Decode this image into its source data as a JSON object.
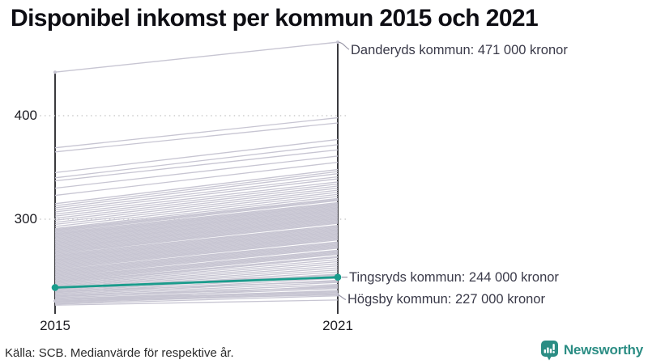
{
  "title": "Disponibel inkomst per kommun 2015 och 2021",
  "source": "Källa: SCB. Medianvärde för respektive år.",
  "brand": {
    "name": "Newsworthy",
    "color": "#2b8d84",
    "icon": "bar-chart-speech-bubble-icon"
  },
  "chart_data": {
    "type": "line",
    "subtype": "slope-chart",
    "title": "Disponibel inkomst per kommun 2015 och 2021",
    "x": [
      2015,
      2021
    ],
    "x_labels": [
      "2015",
      "2021"
    ],
    "y_ticks": [
      400,
      300
    ],
    "y_tick_labels": [
      "400",
      "300"
    ],
    "ylim": [
      208,
      480
    ],
    "unit": "tusen kronor",
    "grid": "dotted-horizontal-at-ticks",
    "legend": "none",
    "colors": {
      "background_line": "#c7c5d2",
      "highlight": "#1a9c8c",
      "axis": "#17171c",
      "grid_dot": "#cfcfcf",
      "connector": "#9a98a8",
      "annotation_text": "#3a3a49"
    },
    "highlight_series": {
      "name": "Tingsryds kommun",
      "values": [
        234,
        244
      ],
      "label": "Tingsryds kommun: 244 000 kronor"
    },
    "annotated_series": [
      {
        "name": "Danderyds kommun",
        "values": [
          442,
          471
        ],
        "label": "Danderyds kommun: 471 000 kronor"
      },
      {
        "name": "Högsby kommun",
        "values": [
          221,
          227
        ],
        "label": "Högsby kommun: 227 000 kronor"
      }
    ],
    "background_series": [
      [
        369,
        398
      ],
      [
        365,
        393
      ],
      [
        345,
        377
      ],
      [
        340,
        372
      ],
      [
        337,
        367
      ],
      [
        330,
        361
      ],
      [
        323,
        355
      ],
      [
        315,
        348
      ],
      [
        313,
        346
      ],
      [
        311,
        344
      ],
      [
        309,
        341
      ],
      [
        307,
        339
      ],
      [
        305,
        336
      ],
      [
        303,
        334
      ],
      [
        301,
        332
      ],
      [
        299,
        330
      ],
      [
        297,
        328
      ],
      [
        295,
        326
      ],
      [
        293,
        324
      ],
      [
        291,
        322
      ],
      [
        290,
        320
      ],
      [
        289,
        319
      ],
      [
        288,
        318
      ],
      [
        287,
        316
      ],
      [
        286,
        315
      ],
      [
        285,
        314
      ],
      [
        284,
        313
      ],
      [
        283,
        312
      ],
      [
        282,
        311
      ],
      [
        281,
        310
      ],
      [
        280,
        309
      ],
      [
        279,
        308
      ],
      [
        278,
        307
      ],
      [
        277,
        306
      ],
      [
        276,
        305
      ],
      [
        275,
        304
      ],
      [
        274,
        303
      ],
      [
        273,
        302
      ],
      [
        272,
        301
      ],
      [
        271,
        300
      ],
      [
        270,
        299
      ],
      [
        269,
        298
      ],
      [
        268,
        297
      ],
      [
        267,
        296
      ],
      [
        266,
        294
      ],
      [
        265,
        293
      ],
      [
        264,
        292
      ],
      [
        263,
        291
      ],
      [
        262,
        290
      ],
      [
        261,
        289
      ],
      [
        260,
        288
      ],
      [
        259,
        287
      ],
      [
        258,
        286
      ],
      [
        257,
        285
      ],
      [
        256,
        284
      ],
      [
        255,
        283
      ],
      [
        254,
        282
      ],
      [
        253,
        281
      ],
      [
        252,
        280
      ],
      [
        251,
        278
      ],
      [
        250,
        277
      ],
      [
        249,
        276
      ],
      [
        248,
        275
      ],
      [
        247,
        274
      ],
      [
        246,
        273
      ],
      [
        245,
        272
      ],
      [
        244,
        270
      ],
      [
        243,
        269
      ],
      [
        242,
        268
      ],
      [
        241,
        267
      ],
      [
        240,
        266
      ],
      [
        239,
        264
      ],
      [
        238,
        263
      ],
      [
        237,
        261
      ],
      [
        236,
        259
      ],
      [
        235,
        257
      ],
      [
        234,
        255
      ],
      [
        233,
        253
      ],
      [
        232,
        251
      ],
      [
        231,
        249
      ],
      [
        230,
        247
      ],
      [
        229,
        245
      ],
      [
        228,
        243
      ],
      [
        227,
        241
      ],
      [
        226,
        239
      ],
      [
        225,
        237
      ],
      [
        224,
        235
      ],
      [
        223,
        233
      ],
      [
        222,
        231
      ],
      [
        221,
        230
      ],
      [
        220,
        229
      ],
      [
        219,
        228
      ],
      [
        218,
        226
      ],
      [
        217,
        222
      ],
      [
        220,
        236
      ],
      [
        223,
        230
      ],
      [
        226,
        234
      ],
      [
        230,
        240
      ],
      [
        234,
        246
      ]
    ]
  }
}
